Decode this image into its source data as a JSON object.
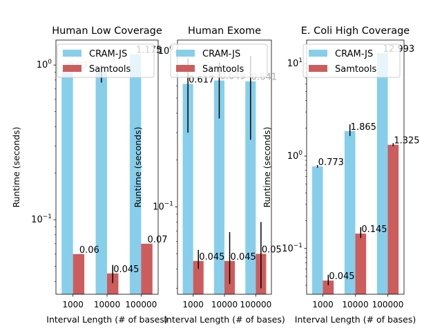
{
  "colors": {
    "cram": "#87ceeb",
    "samtools": "#cd5c5c",
    "error_bar": "#000000",
    "frame": "#000000",
    "background": "#ffffff",
    "legend_border": "#cccccc"
  },
  "chart_data": [
    {
      "type": "bar",
      "title": "Human Low Coverage",
      "xlabel": "Interval Length (# of bases)",
      "ylabel": "Runtime (seconds)",
      "yscale": "log",
      "ylim": [
        0.033,
        1.45
      ],
      "yticks": [
        {
          "value": 0.1,
          "base": "10",
          "exp": "−1"
        },
        {
          "value": 1,
          "base": "10",
          "exp": "0"
        }
      ],
      "minor_ticks": [
        0.04,
        0.05,
        0.06,
        0.07,
        0.08,
        0.09,
        0.2,
        0.3,
        0.4,
        0.5,
        0.6,
        0.7,
        0.8,
        0.9
      ],
      "categories": [
        "1000",
        "10000",
        "100000"
      ],
      "legend": {
        "placement": "top-right",
        "labels": [
          "CRAM-JS",
          "Samtools"
        ]
      },
      "series": [
        {
          "name": "CRAM-JS",
          "values": [
            0.932,
            0.92,
            1.175
          ],
          "labels": [
            "0.932",
            "",
            "1.175"
          ],
          "label_colors": [
            "#aaaaaa",
            "",
            "#000000"
          ],
          "errors": [
            null,
            [
              0.77,
              1.0
            ],
            null
          ]
        },
        {
          "name": "Samtools",
          "values": [
            0.06,
            0.045,
            0.07
          ],
          "labels": [
            "0.06",
            "0.045",
            "0.07"
          ],
          "label_colors": [
            "#000000",
            "#000000",
            "#000000"
          ],
          "errors": [
            null,
            [
              0.039,
              0.051
            ],
            null
          ]
        }
      ]
    },
    {
      "type": "bar",
      "title": "Human Exome",
      "xlabel": "Interval Length (# of bases)",
      "ylabel": "Runtime (seconds)",
      "yscale": "log",
      "ylim": [
        0.0275,
        1.18
      ],
      "yticks": [
        {
          "value": 0.1,
          "base": "10",
          "exp": "−1"
        },
        {
          "value": 1,
          "base": "10",
          "exp": "0"
        }
      ],
      "minor_ticks": [
        0.03,
        0.04,
        0.05,
        0.06,
        0.07,
        0.08,
        0.09,
        0.2,
        0.3,
        0.4,
        0.5,
        0.6,
        0.7,
        0.8,
        0.9
      ],
      "categories": [
        "1000",
        "10000",
        "100000"
      ],
      "legend": {
        "placement": "top-right",
        "labels": [
          "CRAM-JS",
          "Samtools"
        ]
      },
      "series": [
        {
          "name": "CRAM-JS",
          "values": [
            0.617,
            0.649,
            0.641
          ],
          "labels": [
            "0.617",
            "0.649",
            "0.641"
          ],
          "label_colors": [
            "#000000",
            "#aaaaaa",
            "#aaaaaa"
          ],
          "errors": [
            [
              0.3,
              0.9
            ],
            [
              0.37,
              0.85
            ],
            [
              0.27,
              0.93
            ]
          ]
        },
        {
          "name": "Samtools",
          "values": [
            0.045,
            0.045,
            0.05
          ],
          "labels": [
            "0.045",
            "0.045",
            "0.05"
          ],
          "label_colors": [
            "#000000",
            "#000000",
            "#000000"
          ],
          "errors": [
            [
              0.04,
              0.053
            ],
            [
              0.032,
              0.069
            ],
            [
              0.03,
              0.08
            ]
          ]
        }
      ]
    },
    {
      "type": "bar",
      "title": "E. Coli High Coverage",
      "xlabel": "Interval Length (# of bases)",
      "ylabel": "Runtime (seconds)",
      "yscale": "log",
      "ylim": [
        0.032,
        18
      ],
      "yticks": [
        {
          "value": 0.1,
          "base": "10",
          "exp": "−1"
        },
        {
          "value": 1,
          "base": "10",
          "exp": "0"
        },
        {
          "value": 10,
          "base": "10",
          "exp": "1"
        }
      ],
      "minor_ticks": [
        0.04,
        0.05,
        0.06,
        0.07,
        0.08,
        0.09,
        0.2,
        0.3,
        0.4,
        0.5,
        0.6,
        0.7,
        0.8,
        0.9,
        2,
        3,
        4,
        5,
        6,
        7,
        8,
        9
      ],
      "categories": [
        "1000",
        "10000",
        "100000"
      ],
      "legend": {
        "placement": "top-right",
        "labels": [
          "CRAM-JS",
          "Samtools"
        ]
      },
      "series": [
        {
          "name": "CRAM-JS",
          "values": [
            0.773,
            1.865,
            12.993
          ],
          "labels": [
            "0.773",
            "1.865",
            "12.993"
          ],
          "label_colors": [
            "#000000",
            "#000000",
            "#000000"
          ],
          "errors": [
            [
              0.75,
              0.8
            ],
            [
              1.65,
              2.2
            ],
            null
          ]
        },
        {
          "name": "Samtools",
          "values": [
            0.045,
            0.145,
            1.325
          ],
          "labels": [
            "0.045",
            "0.145",
            "1.325"
          ],
          "label_colors": [
            "#000000",
            "#000000",
            "#000000"
          ],
          "errors": [
            [
              0.04,
              0.052
            ],
            [
              0.13,
              0.17
            ],
            [
              1.28,
              1.38
            ]
          ]
        }
      ]
    }
  ]
}
